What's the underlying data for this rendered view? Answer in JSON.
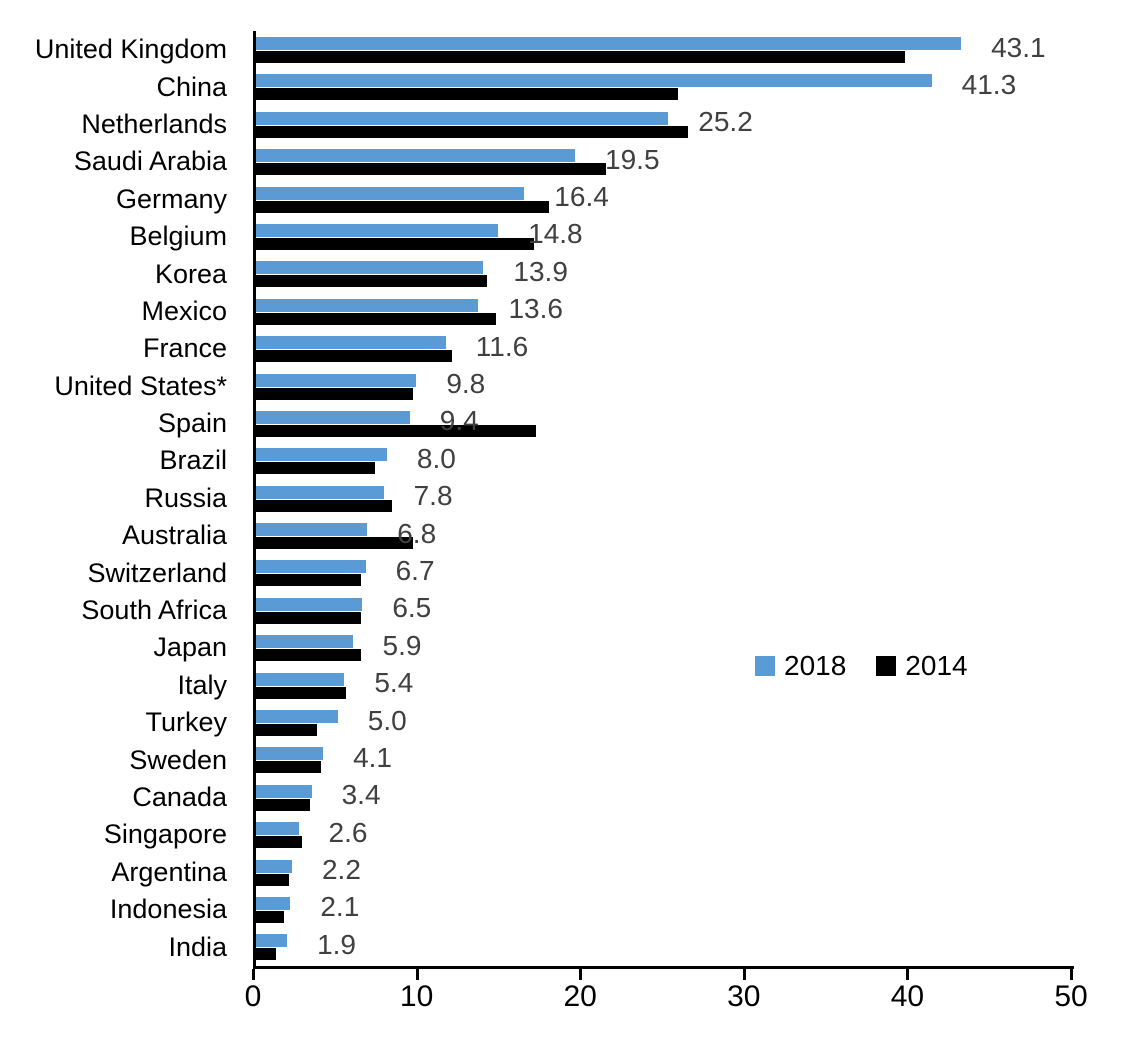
{
  "chart_data": {
    "type": "bar",
    "orientation": "horizontal",
    "title": "",
    "xlabel": "",
    "ylabel": "",
    "xlim": [
      0,
      50
    ],
    "x_ticks": [
      0,
      10,
      20,
      30,
      40,
      50
    ],
    "grid": false,
    "legend_position": "middle-right",
    "categories": [
      "United Kingdom",
      "China",
      "Netherlands",
      "Saudi Arabia",
      "Germany",
      "Belgium",
      "Korea",
      "Mexico",
      "France",
      "United States*",
      "Spain",
      "Brazil",
      "Russia",
      "Australia",
      "Switzerland",
      "South Africa",
      "Japan",
      "Italy",
      "Turkey",
      "Sweden",
      "Canada",
      "Singapore",
      "Argentina",
      "Indonesia",
      "India"
    ],
    "series": [
      {
        "name": "2018",
        "color": "#5B9BD5",
        "values": [
          43.1,
          41.3,
          25.2,
          19.5,
          16.4,
          14.8,
          13.9,
          13.6,
          11.6,
          9.8,
          9.4,
          8.0,
          7.8,
          6.8,
          6.7,
          6.5,
          5.9,
          5.4,
          5.0,
          4.1,
          3.4,
          2.6,
          2.2,
          2.1,
          1.9
        ]
      },
      {
        "name": "2014",
        "color": "#000000",
        "values": [
          39.7,
          25.8,
          26.4,
          21.4,
          17.9,
          17.0,
          14.1,
          14.7,
          12.0,
          9.6,
          17.1,
          7.3,
          8.3,
          9.6,
          6.4,
          6.4,
          6.4,
          5.5,
          3.7,
          4.0,
          3.3,
          2.8,
          2.0,
          1.7,
          1.2
        ]
      }
    ],
    "data_labels": [
      "43.1",
      "41.3",
      "25.2",
      "19.5",
      "16.4",
      "14.8",
      "13.9",
      "13.6",
      "11.6",
      "9.8",
      "9.4",
      "8.0",
      "7.8",
      "6.8",
      "6.7",
      "6.5",
      "5.9",
      "5.4",
      "5.0",
      "4.1",
      "3.4",
      "2.6",
      "2.2",
      "2.1",
      "1.9"
    ],
    "data_label_color": "#404040"
  }
}
